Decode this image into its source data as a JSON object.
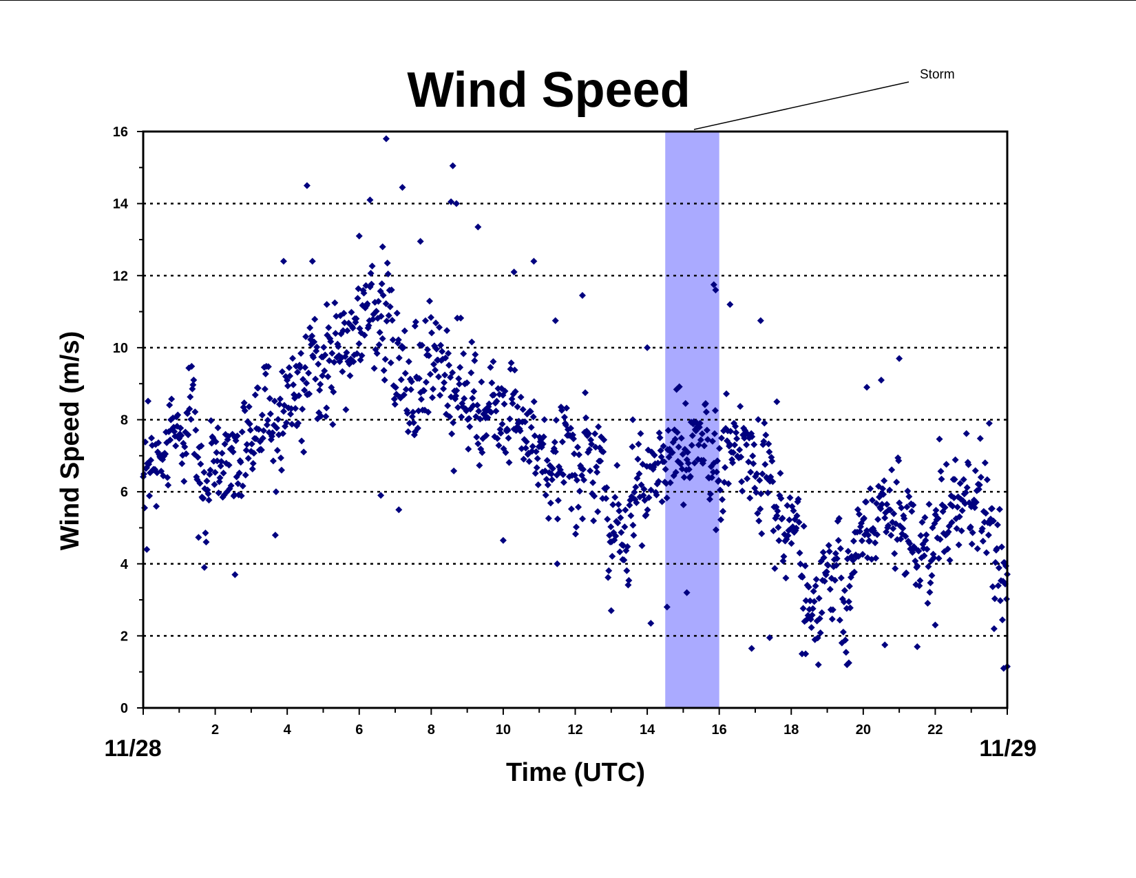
{
  "chart_data": {
    "type": "scatter",
    "title": "Wind Speed",
    "xlabel": "Time (UTC)",
    "ylabel": "Wind Speed (m/s)",
    "xlim": [
      0,
      24
    ],
    "ylim": [
      0,
      16
    ],
    "x_ticks": [
      2,
      4,
      6,
      8,
      10,
      12,
      14,
      16,
      18,
      20,
      22
    ],
    "y_ticks": [
      0,
      2,
      4,
      6,
      8,
      10,
      12,
      14,
      16
    ],
    "x_tick_labels": [
      "2",
      "4",
      "6",
      "8",
      "10",
      "12",
      "14",
      "16",
      "18",
      "20",
      "22"
    ],
    "y_tick_labels": [
      "0",
      "2",
      "4",
      "6",
      "8",
      "10",
      "12",
      "14",
      "16"
    ],
    "date_labels": {
      "start": "11/28",
      "end": "11/29"
    },
    "grid": "horizontal dotted",
    "marker_color": "#00007f",
    "highlight": {
      "label": "Storm",
      "x_start": 14.5,
      "x_end": 16.0,
      "color": "#aaaaff"
    },
    "trend": [
      [
        0,
        7.0
      ],
      [
        0.5,
        7.2
      ],
      [
        1.0,
        7.9
      ],
      [
        1.3,
        7.3
      ],
      [
        1.6,
        6.0
      ],
      [
        2.0,
        6.2
      ],
      [
        2.5,
        6.8
      ],
      [
        3.0,
        7.6
      ],
      [
        3.5,
        8.0
      ],
      [
        4.0,
        8.8
      ],
      [
        4.5,
        9.3
      ],
      [
        5.0,
        9.6
      ],
      [
        5.5,
        10.0
      ],
      [
        6.0,
        10.3
      ],
      [
        6.5,
        10.2
      ],
      [
        7.0,
        9.8
      ],
      [
        7.5,
        9.2
      ],
      [
        8.0,
        9.5
      ],
      [
        8.5,
        9.4
      ],
      [
        9.0,
        9.0
      ],
      [
        9.5,
        8.6
      ],
      [
        10.0,
        8.2
      ],
      [
        10.5,
        7.8
      ],
      [
        11.0,
        7.4
      ],
      [
        11.5,
        7.0
      ],
      [
        12.0,
        7.0
      ],
      [
        12.5,
        7.2
      ],
      [
        13.0,
        5.8
      ],
      [
        13.5,
        5.8
      ],
      [
        14.0,
        6.2
      ],
      [
        14.5,
        6.0
      ],
      [
        15.0,
        6.8
      ],
      [
        15.5,
        7.2
      ],
      [
        16.0,
        7.4
      ],
      [
        16.5,
        7.4
      ],
      [
        17.0,
        6.8
      ],
      [
        17.5,
        5.8
      ],
      [
        18.0,
        4.8
      ],
      [
        18.5,
        3.5
      ],
      [
        19.0,
        3.5
      ],
      [
        19.5,
        3.2
      ],
      [
        20.0,
        4.8
      ],
      [
        20.5,
        6.0
      ],
      [
        21.0,
        5.6
      ],
      [
        21.5,
        4.4
      ],
      [
        22.0,
        4.8
      ],
      [
        22.5,
        5.4
      ],
      [
        23.0,
        5.6
      ],
      [
        23.5,
        5.2
      ],
      [
        24.0,
        3.5
      ]
    ],
    "outliers": [
      [
        6.75,
        15.8
      ],
      [
        8.6,
        15.05
      ],
      [
        4.55,
        14.5
      ],
      [
        7.2,
        14.45
      ],
      [
        6.3,
        14.1
      ],
      [
        8.55,
        14.05
      ],
      [
        8.7,
        14.0
      ],
      [
        9.3,
        13.35
      ],
      [
        6.0,
        13.1
      ],
      [
        6.65,
        12.8
      ],
      [
        7.7,
        12.95
      ],
      [
        3.9,
        12.4
      ],
      [
        4.7,
        12.4
      ],
      [
        10.85,
        12.4
      ],
      [
        11.45,
        10.75
      ],
      [
        14.0,
        10.0
      ],
      [
        16.3,
        11.2
      ],
      [
        17.15,
        10.75
      ],
      [
        21.0,
        9.7
      ],
      [
        20.5,
        9.1
      ],
      [
        16.9,
        1.65
      ],
      [
        17.4,
        1.95
      ],
      [
        19.55,
        1.2
      ],
      [
        19.6,
        1.25
      ],
      [
        24.0,
        1.15
      ],
      [
        23.9,
        1.1
      ],
      [
        14.1,
        2.35
      ],
      [
        14.55,
        2.8
      ],
      [
        15.1,
        3.2
      ],
      [
        13.0,
        2.7
      ],
      [
        21.5,
        1.7
      ],
      [
        20.6,
        1.75
      ],
      [
        18.3,
        1.5
      ],
      [
        18.4,
        1.5
      ],
      [
        0.1,
        4.4
      ],
      [
        2.55,
        3.7
      ],
      [
        10.0,
        4.65
      ],
      [
        11.5,
        4.0
      ],
      [
        1.7,
        3.9
      ],
      [
        7.1,
        5.5
      ],
      [
        6.6,
        5.9
      ],
      [
        12.2,
        11.45
      ],
      [
        10.3,
        12.1
      ],
      [
        7.55,
        10.6
      ],
      [
        5.1,
        11.2
      ],
      [
        20.1,
        8.9
      ],
      [
        17.6,
        8.5
      ],
      [
        13.6,
        8.0
      ],
      [
        22.0,
        2.3
      ],
      [
        23.5,
        7.9
      ],
      [
        15.85,
        11.75
      ],
      [
        15.9,
        11.6
      ]
    ]
  }
}
